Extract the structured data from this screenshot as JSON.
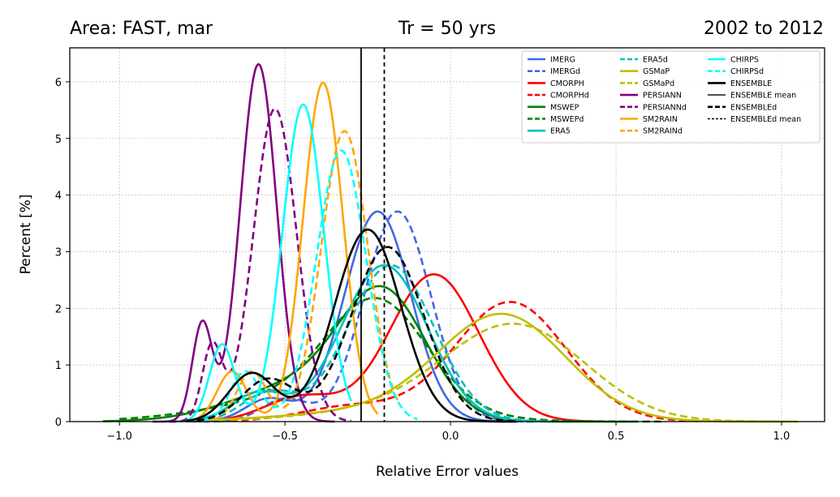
{
  "chart_data": {
    "type": "line",
    "title_left": "Area: FAST, mar",
    "title_center": "Tr = 50 yrs",
    "title_right": "2002 to 2012",
    "xlabel": "Relative Error values",
    "ylabel": "Percent [%]",
    "xlim": [
      -1.15,
      1.13
    ],
    "ylim": [
      0,
      6.6
    ],
    "xticks": [
      -1.0,
      -0.5,
      0.0,
      0.5,
      1.0
    ],
    "xtick_labels": [
      "−1.0",
      "−0.5",
      "0.0",
      "0.5",
      "1.0"
    ],
    "yticks": [
      0,
      1,
      2,
      3,
      4,
      5,
      6
    ],
    "ytick_labels": [
      "0",
      "1",
      "2",
      "3",
      "4",
      "5",
      "6"
    ],
    "grid": true,
    "legend_placement": "top-right",
    "vlines": [
      {
        "name": "ENSEMBLE mean",
        "x": -0.27,
        "style": "solid",
        "color": "#000000"
      },
      {
        "name": "ENSEMBLEd mean",
        "x": -0.2,
        "style": "dashed",
        "color": "#000000"
      }
    ],
    "series": [
      {
        "name": "IMERG",
        "color": "#4169E1",
        "dash": false,
        "range": [
          -0.78,
          0.2
        ],
        "components": [
          {
            "w": 0.93,
            "mu": -0.22,
            "sd": 0.1
          },
          {
            "w": 0.07,
            "mu": -0.55,
            "sd": 0.07
          }
        ]
      },
      {
        "name": "IMERGd",
        "color": "#4169E1",
        "dash": true,
        "range": [
          -0.75,
          0.25
        ],
        "components": [
          {
            "w": 0.93,
            "mu": -0.16,
            "sd": 0.1
          },
          {
            "w": 0.07,
            "mu": -0.5,
            "sd": 0.07
          }
        ]
      },
      {
        "name": "CMORPH",
        "color": "#FF0000",
        "dash": false,
        "range": [
          -0.7,
          0.45
        ],
        "components": [
          {
            "w": 0.88,
            "mu": -0.05,
            "sd": 0.135
          },
          {
            "w": 0.12,
            "mu": -0.45,
            "sd": 0.11
          }
        ]
      },
      {
        "name": "CMORPHd",
        "color": "#FF0000",
        "dash": true,
        "range": [
          -0.7,
          0.75
        ],
        "components": [
          {
            "w": 0.9,
            "mu": 0.18,
            "sd": 0.17
          },
          {
            "w": 0.1,
            "mu": -0.3,
            "sd": 0.15
          }
        ]
      },
      {
        "name": "MSWEP",
        "color": "#008000",
        "dash": false,
        "range": [
          -1.05,
          0.55
        ],
        "components": [
          {
            "w": 0.68,
            "mu": -0.2,
            "sd": 0.13
          },
          {
            "w": 0.32,
            "mu": -0.45,
            "sd": 0.2
          }
        ]
      },
      {
        "name": "MSWEPd",
        "color": "#008000",
        "dash": true,
        "range": [
          -1.0,
          0.65
        ],
        "components": [
          {
            "w": 0.68,
            "mu": -0.22,
            "sd": 0.15
          },
          {
            "w": 0.32,
            "mu": -0.4,
            "sd": 0.28
          }
        ]
      },
      {
        "name": "ERA5",
        "color": "#00BFBF",
        "dash": false,
        "range": [
          -0.85,
          0.3
        ],
        "components": [
          {
            "w": 0.9,
            "mu": -0.2,
            "sd": 0.13
          },
          {
            "w": 0.1,
            "mu": -0.58,
            "sd": 0.08
          }
        ]
      },
      {
        "name": "ERA5d",
        "color": "#00BFBF",
        "dash": true,
        "range": [
          -0.8,
          0.3
        ],
        "components": [
          {
            "w": 0.9,
            "mu": -0.18,
            "sd": 0.13
          },
          {
            "w": 0.1,
            "mu": -0.55,
            "sd": 0.08
          }
        ]
      },
      {
        "name": "GSMaP",
        "color": "#BFBF00",
        "dash": false,
        "range": [
          -0.75,
          1.05
        ],
        "components": [
          {
            "w": 0.85,
            "mu": 0.16,
            "sd": 0.19
          },
          {
            "w": 0.15,
            "mu": -0.15,
            "sd": 0.3
          }
        ]
      },
      {
        "name": "GSMaPd",
        "color": "#BFBF00",
        "dash": true,
        "range": [
          -0.7,
          1.0
        ],
        "components": [
          {
            "w": 0.85,
            "mu": 0.2,
            "sd": 0.21
          },
          {
            "w": 0.15,
            "mu": -0.12,
            "sd": 0.28
          }
        ]
      },
      {
        "name": "PERSIANN",
        "color": "#800080",
        "dash": false,
        "range": [
          -0.9,
          -0.35
        ],
        "components": [
          {
            "w": 0.87,
            "mu": -0.58,
            "sd": 0.055
          },
          {
            "w": 0.13,
            "mu": -0.75,
            "sd": 0.03
          }
        ]
      },
      {
        "name": "PERSIANNd",
        "color": "#800080",
        "dash": true,
        "range": [
          -0.85,
          -0.3
        ],
        "components": [
          {
            "w": 0.9,
            "mu": -0.53,
            "sd": 0.065
          },
          {
            "w": 0.1,
            "mu": -0.72,
            "sd": 0.03
          }
        ]
      },
      {
        "name": "SM2RAIN",
        "color": "#FFA500",
        "dash": false,
        "range": [
          -0.8,
          -0.22
        ],
        "components": [
          {
            "w": 0.9,
            "mu": -0.385,
            "sd": 0.06
          },
          {
            "w": 0.1,
            "mu": -0.66,
            "sd": 0.045
          }
        ]
      },
      {
        "name": "SM2RAINd",
        "color": "#FFA500",
        "dash": true,
        "range": [
          -0.75,
          -0.15
        ],
        "components": [
          {
            "w": 0.9,
            "mu": -0.32,
            "sd": 0.07
          },
          {
            "w": 0.1,
            "mu": -0.6,
            "sd": 0.045
          }
        ]
      },
      {
        "name": "CHIRPS",
        "color": "#00FFFF",
        "dash": false,
        "range": [
          -0.8,
          -0.3
        ],
        "components": [
          {
            "w": 0.87,
            "mu": -0.445,
            "sd": 0.062
          },
          {
            "w": 0.13,
            "mu": -0.69,
            "sd": 0.038
          }
        ]
      },
      {
        "name": "CHIRPSd",
        "color": "#00FFFF",
        "dash": true,
        "range": [
          -0.75,
          -0.1
        ],
        "components": [
          {
            "w": 0.9,
            "mu": -0.33,
            "sd": 0.075
          },
          {
            "w": 0.1,
            "mu": -0.62,
            "sd": 0.045
          }
        ]
      },
      {
        "name": "ENSEMBLE",
        "color": "#000000",
        "dash": false,
        "range": [
          -0.8,
          0.2
        ],
        "components": [
          {
            "w": 0.85,
            "mu": -0.25,
            "sd": 0.1
          },
          {
            "w": 0.15,
            "mu": -0.6,
            "sd": 0.07
          }
        ]
      },
      {
        "name": "ENSEMBLEd",
        "color": "#000000",
        "dash": true,
        "range": [
          -0.8,
          0.2
        ],
        "components": [
          {
            "w": 0.85,
            "mu": -0.19,
            "sd": 0.11
          },
          {
            "w": 0.15,
            "mu": -0.55,
            "sd": 0.08
          }
        ]
      }
    ],
    "legend": [
      {
        "label": "IMERG",
        "color": "#4169E1",
        "style": "solid",
        "weight": "normal"
      },
      {
        "label": "IMERGd",
        "color": "#4169E1",
        "style": "dashed",
        "weight": "normal"
      },
      {
        "label": "CMORPH",
        "color": "#FF0000",
        "style": "solid",
        "weight": "normal"
      },
      {
        "label": "CMORPHd",
        "color": "#FF0000",
        "style": "dashed",
        "weight": "normal"
      },
      {
        "label": "MSWEP",
        "color": "#008000",
        "style": "solid",
        "weight": "normal"
      },
      {
        "label": "MSWEPd",
        "color": "#008000",
        "style": "dashed",
        "weight": "normal"
      },
      {
        "label": "ERA5",
        "color": "#00BFBF",
        "style": "solid",
        "weight": "normal"
      },
      {
        "label": "ERA5d",
        "color": "#00BFBF",
        "style": "dashed",
        "weight": "normal"
      },
      {
        "label": "GSMaP",
        "color": "#BFBF00",
        "style": "solid",
        "weight": "normal"
      },
      {
        "label": "GSMaPd",
        "color": "#BFBF00",
        "style": "dashed",
        "weight": "normal"
      },
      {
        "label": "PERSIANN",
        "color": "#800080",
        "style": "solid",
        "weight": "normal"
      },
      {
        "label": "PERSIANNd",
        "color": "#800080",
        "style": "dashed",
        "weight": "normal"
      },
      {
        "label": "SM2RAIN",
        "color": "#FFA500",
        "style": "solid",
        "weight": "normal"
      },
      {
        "label": "SM2RAINd",
        "color": "#FFA500",
        "style": "dashed",
        "weight": "normal"
      },
      {
        "label": "CHIRPS",
        "color": "#00FFFF",
        "style": "solid",
        "weight": "normal"
      },
      {
        "label": "CHIRPSd",
        "color": "#00FFFF",
        "style": "dashed",
        "weight": "normal"
      },
      {
        "label": "ENSEMBLE",
        "color": "#000000",
        "style": "solid",
        "weight": "normal"
      },
      {
        "label": "ENSEMBLE mean",
        "color": "#000000",
        "style": "solid",
        "weight": "thin"
      },
      {
        "label": "ENSEMBLEd",
        "color": "#000000",
        "style": "dashed",
        "weight": "normal"
      },
      {
        "label": "ENSEMBLEd mean",
        "color": "#000000",
        "style": "dashed",
        "weight": "thin"
      }
    ]
  }
}
